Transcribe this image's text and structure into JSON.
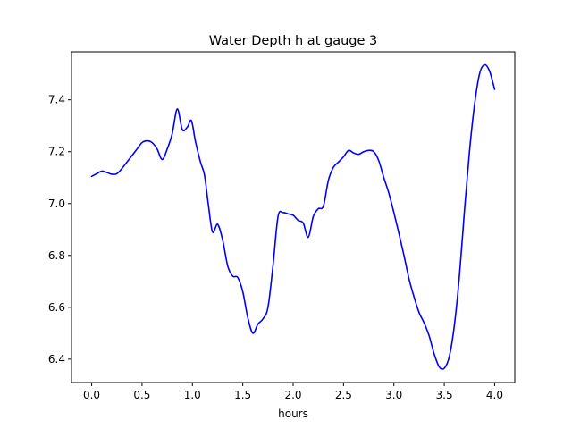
{
  "chart_data": {
    "type": "line",
    "title": "Water Depth h at gauge 3",
    "xlabel": "hours",
    "ylabel": "",
    "xlim": [
      -0.2,
      4.2
    ],
    "ylim": [
      6.31,
      7.585
    ],
    "xticks": [
      {
        "value": 0.0,
        "label": "0.0"
      },
      {
        "value": 0.5,
        "label": "0.5"
      },
      {
        "value": 1.0,
        "label": "1.0"
      },
      {
        "value": 1.5,
        "label": "1.5"
      },
      {
        "value": 2.0,
        "label": "2.0"
      },
      {
        "value": 2.5,
        "label": "2.5"
      },
      {
        "value": 3.0,
        "label": "3.0"
      },
      {
        "value": 3.5,
        "label": "3.5"
      },
      {
        "value": 4.0,
        "label": "4.0"
      }
    ],
    "yticks": [
      {
        "value": 6.4,
        "label": "6.4"
      },
      {
        "value": 6.6,
        "label": "6.6"
      },
      {
        "value": 6.8,
        "label": "6.8"
      },
      {
        "value": 7.0,
        "label": "7.0"
      },
      {
        "value": 7.2,
        "label": "7.2"
      },
      {
        "value": 7.4,
        "label": "7.4"
      }
    ],
    "grid": false,
    "legend": "none",
    "series": [
      {
        "color": "#0000ff",
        "x": [
          0.0,
          0.05,
          0.1,
          0.15,
          0.2,
          0.25,
          0.3,
          0.35,
          0.4,
          0.45,
          0.5,
          0.55,
          0.6,
          0.65,
          0.7,
          0.75,
          0.8,
          0.85,
          0.9,
          0.95,
          0.99,
          1.03,
          1.08,
          1.12,
          1.16,
          1.2,
          1.25,
          1.3,
          1.35,
          1.4,
          1.45,
          1.5,
          1.55,
          1.6,
          1.65,
          1.7,
          1.75,
          1.8,
          1.85,
          1.9,
          1.95,
          2.0,
          2.05,
          2.1,
          2.15,
          2.2,
          2.25,
          2.3,
          2.35,
          2.4,
          2.45,
          2.5,
          2.55,
          2.6,
          2.65,
          2.7,
          2.75,
          2.8,
          2.85,
          2.9,
          2.95,
          3.0,
          3.05,
          3.1,
          3.15,
          3.2,
          3.25,
          3.3,
          3.35,
          3.4,
          3.45,
          3.5,
          3.55,
          3.6,
          3.65,
          3.7,
          3.75,
          3.8,
          3.85,
          3.9,
          3.95,
          4.0
        ],
        "y": [
          7.105,
          7.115,
          7.125,
          7.12,
          7.113,
          7.115,
          7.135,
          7.16,
          7.185,
          7.21,
          7.235,
          7.242,
          7.235,
          7.21,
          7.17,
          7.21,
          7.27,
          7.365,
          7.285,
          7.295,
          7.32,
          7.24,
          7.16,
          7.11,
          6.99,
          6.89,
          6.92,
          6.86,
          6.76,
          6.72,
          6.715,
          6.66,
          6.56,
          6.5,
          6.535,
          6.555,
          6.6,
          6.76,
          6.95,
          6.965,
          6.96,
          6.955,
          6.935,
          6.925,
          6.87,
          6.95,
          6.98,
          6.99,
          7.09,
          7.14,
          7.16,
          7.18,
          7.205,
          7.195,
          7.19,
          7.2,
          7.205,
          7.2,
          7.165,
          7.1,
          7.04,
          6.965,
          6.885,
          6.8,
          6.71,
          6.64,
          6.58,
          6.54,
          6.49,
          6.42,
          6.37,
          6.365,
          6.41,
          6.53,
          6.72,
          6.97,
          7.2,
          7.38,
          7.5,
          7.535,
          7.51,
          7.44
        ]
      }
    ]
  }
}
